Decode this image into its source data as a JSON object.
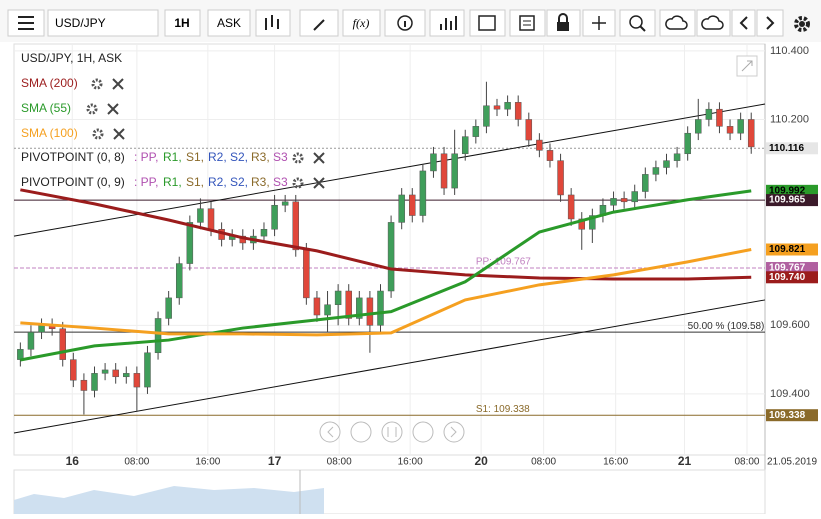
{
  "toolbar": {
    "symbol": "USD/JPY",
    "interval": "1H",
    "side": "ASK",
    "fx": "f(x)"
  },
  "legend": {
    "title": "USD/JPY, 1H, ASK",
    "pivots": [
      {
        "name": "PIVOTPOINT (0, 8)"
      },
      {
        "name": "PIVOTPOINT (0, 9)"
      }
    ],
    "pivot_items": [
      {
        "text": ": PP,",
        "color": "#b050b0"
      },
      {
        "text": "R1,",
        "color": "#2a9a2a"
      },
      {
        "text": "S1,",
        "color": "#8a6a2a"
      },
      {
        "text": "R2,",
        "color": "#3355bb"
      },
      {
        "text": "S2,",
        "color": "#3355bb"
      },
      {
        "text": "R3,",
        "color": "#8a6a2a"
      },
      {
        "text": "S3",
        "color": "#b050b0"
      }
    ]
  },
  "chart_data": {
    "type": "candlestick",
    "up_color": "#3f9e5a",
    "down_color": "#e0473a",
    "candles": [
      [
        109.5,
        109.55,
        109.48,
        109.53
      ],
      [
        109.53,
        109.6,
        109.51,
        109.58
      ],
      [
        109.58,
        109.62,
        109.56,
        109.6
      ],
      [
        109.6,
        109.62,
        109.57,
        109.59
      ],
      [
        109.59,
        109.61,
        109.48,
        109.5
      ],
      [
        109.5,
        109.52,
        109.42,
        109.44
      ],
      [
        109.44,
        109.46,
        109.34,
        109.41
      ],
      [
        109.41,
        109.48,
        109.39,
        109.46
      ],
      [
        109.46,
        109.49,
        109.44,
        109.47
      ],
      [
        109.47,
        109.49,
        109.43,
        109.45
      ],
      [
        109.45,
        109.48,
        109.43,
        109.46
      ],
      [
        109.46,
        109.48,
        109.35,
        109.42
      ],
      [
        109.42,
        109.54,
        109.4,
        109.52
      ],
      [
        109.52,
        109.64,
        109.5,
        109.62
      ],
      [
        109.62,
        109.7,
        109.6,
        109.68
      ],
      [
        109.68,
        109.8,
        109.66,
        109.78
      ],
      [
        109.78,
        109.92,
        109.76,
        109.9
      ],
      [
        109.9,
        109.97,
        109.88,
        109.94
      ],
      [
        109.94,
        109.96,
        109.86,
        109.88
      ],
      [
        109.88,
        109.9,
        109.83,
        109.85
      ],
      [
        109.85,
        109.88,
        109.83,
        109.86
      ],
      [
        109.86,
        109.88,
        109.82,
        109.84
      ],
      [
        109.84,
        109.88,
        109.82,
        109.86
      ],
      [
        109.86,
        109.9,
        109.84,
        109.88
      ],
      [
        109.88,
        109.98,
        109.86,
        109.95
      ],
      [
        109.95,
        109.98,
        109.93,
        109.96
      ],
      [
        109.96,
        109.98,
        109.8,
        109.82
      ],
      [
        109.82,
        109.84,
        109.66,
        109.68
      ],
      [
        109.68,
        109.7,
        109.61,
        109.63
      ],
      [
        109.63,
        109.7,
        109.58,
        109.66
      ],
      [
        109.66,
        109.72,
        109.6,
        109.7
      ],
      [
        109.7,
        109.72,
        109.6,
        109.62
      ],
      [
        109.62,
        109.7,
        109.6,
        109.68
      ],
      [
        109.68,
        109.7,
        109.52,
        109.6
      ],
      [
        109.6,
        109.72,
        109.58,
        109.7
      ],
      [
        109.7,
        109.92,
        109.68,
        109.9
      ],
      [
        109.9,
        110.0,
        109.88,
        109.98
      ],
      [
        109.98,
        110.0,
        109.9,
        109.92
      ],
      [
        109.92,
        110.07,
        109.9,
        110.05
      ],
      [
        110.05,
        110.12,
        110.03,
        110.1
      ],
      [
        110.1,
        110.12,
        109.98,
        110.0
      ],
      [
        110.0,
        110.17,
        109.98,
        110.1
      ],
      [
        110.1,
        110.17,
        110.08,
        110.15
      ],
      [
        110.15,
        110.2,
        110.13,
        110.18
      ],
      [
        110.18,
        110.31,
        110.16,
        110.24
      ],
      [
        110.24,
        110.26,
        110.21,
        110.23
      ],
      [
        110.23,
        110.27,
        110.21,
        110.25
      ],
      [
        110.25,
        110.27,
        110.18,
        110.2
      ],
      [
        110.2,
        110.22,
        110.12,
        110.14
      ],
      [
        110.14,
        110.16,
        110.09,
        110.11
      ],
      [
        110.11,
        110.13,
        110.06,
        110.08
      ],
      [
        110.08,
        110.1,
        109.96,
        109.98
      ],
      [
        109.98,
        110.0,
        109.89,
        109.91
      ],
      [
        109.91,
        109.93,
        109.82,
        109.88
      ],
      [
        109.88,
        109.94,
        109.84,
        109.92
      ],
      [
        109.92,
        109.97,
        109.9,
        109.95
      ],
      [
        109.95,
        109.99,
        109.93,
        109.97
      ],
      [
        109.97,
        109.99,
        109.94,
        109.96
      ],
      [
        109.96,
        110.01,
        109.94,
        109.99
      ],
      [
        109.99,
        110.06,
        109.97,
        110.04
      ],
      [
        110.04,
        110.08,
        110.02,
        110.06
      ],
      [
        110.06,
        110.1,
        110.04,
        110.08
      ],
      [
        110.08,
        110.12,
        110.06,
        110.1
      ],
      [
        110.1,
        110.18,
        110.08,
        110.16
      ],
      [
        110.16,
        110.26,
        110.14,
        110.2
      ],
      [
        110.2,
        110.25,
        110.18,
        110.23
      ],
      [
        110.23,
        110.25,
        110.16,
        110.18
      ],
      [
        110.18,
        110.2,
        110.14,
        110.16
      ],
      [
        110.16,
        110.22,
        110.14,
        110.2
      ],
      [
        110.2,
        110.22,
        110.1,
        110.12
      ]
    ],
    "xlim": [
      -0.6,
      70.3
    ],
    "ylim": [
      109.222,
      110.42
    ],
    "yticks": [
      {
        "value": 109.4,
        "label": "109.400"
      },
      {
        "value": 109.6,
        "label": "109.600"
      },
      {
        "value": 110.2,
        "label": "110.200"
      },
      {
        "value": 110.4,
        "label": "110.400"
      }
    ],
    "xticks": [
      {
        "value": 4.9,
        "label": "16"
      },
      {
        "value": 11,
        "label": "08:00"
      },
      {
        "value": 17.7,
        "label": "16:00"
      },
      {
        "value": 24,
        "label": "17"
      },
      {
        "value": 30.1,
        "label": "08:00"
      },
      {
        "value": 36.8,
        "label": "16:00"
      },
      {
        "value": 43.5,
        "label": "20"
      },
      {
        "value": 49.4,
        "label": "08:00"
      },
      {
        "value": 56.2,
        "label": "16:00"
      },
      {
        "value": 62.7,
        "label": "21"
      },
      {
        "value": 68.6,
        "label": "08:00"
      }
    ],
    "date_label": "21.05.2019",
    "grid": true,
    "series": [
      {
        "name": "SMA (200)",
        "color": "#9b1c1c",
        "x": [
          0,
          7,
          14,
          21,
          28,
          35,
          42,
          49,
          56,
          63,
          69
        ],
        "values": [
          109.995,
          109.954,
          109.907,
          109.855,
          109.817,
          109.764,
          109.747,
          109.738,
          109.735,
          109.735,
          109.74
        ]
      },
      {
        "name": "SMA (55)",
        "color": "#2a9a2a",
        "x": [
          0,
          7,
          14,
          21,
          28,
          35,
          42,
          49,
          56,
          63,
          69
        ],
        "values": [
          109.499,
          109.54,
          109.557,
          109.592,
          109.616,
          109.64,
          109.727,
          109.872,
          109.93,
          109.966,
          109.992
        ]
      },
      {
        "name": "SMA (100)",
        "color": "#f5a020",
        "x": [
          0,
          7,
          14,
          21,
          28,
          35,
          42,
          49,
          56,
          63,
          69
        ],
        "values": [
          109.607,
          109.592,
          109.575,
          109.575,
          109.572,
          109.578,
          109.674,
          109.718,
          109.747,
          109.785,
          109.821
        ]
      }
    ],
    "trendlines": [
      {
        "x": [
          -0.6,
          70.3
        ],
        "values": [
          109.86,
          110.245
        ]
      },
      {
        "x": [
          -0.6,
          70.3
        ],
        "values": [
          109.286,
          109.674
        ]
      }
    ],
    "levels": [
      {
        "value": 110.116,
        "color": "#999999",
        "dash": true
      },
      {
        "value": 109.965,
        "color": "#3b1a2a"
      },
      {
        "value": 109.767,
        "color": "#c080c0",
        "label": "PP: 109.767",
        "at": 43
      },
      {
        "value": 109.58,
        "color": "#333333",
        "label": "50.00 % (109.58)",
        "at": 63
      },
      {
        "value": 109.338,
        "color": "#8a6a2a",
        "label": "S1: 109.338",
        "at": 43
      }
    ],
    "price_labels": [
      {
        "value": 110.116,
        "label": "110.116",
        "bg": "#e6e6e6",
        "fg": "#000000"
      },
      {
        "value": 109.992,
        "label": "109.992",
        "bg": "#2a9a2a",
        "fg": "#000000"
      },
      {
        "value": 109.965,
        "label": "109.965",
        "bg": "#3b1a2a",
        "fg": "#ffffff"
      },
      {
        "value": 109.821,
        "label": "109.821",
        "bg": "#f5a020",
        "fg": "#000000"
      },
      {
        "value": 109.767,
        "label": "109.767",
        "bg": "#b060a0",
        "fg": "#ffffff"
      },
      {
        "value": 109.74,
        "label": "109.740",
        "bg": "#9b1c1c",
        "fg": "#ffffff"
      },
      {
        "value": 109.338,
        "label": "109.338",
        "bg": "#8a6a2a",
        "fg": "#ffffff"
      }
    ]
  }
}
